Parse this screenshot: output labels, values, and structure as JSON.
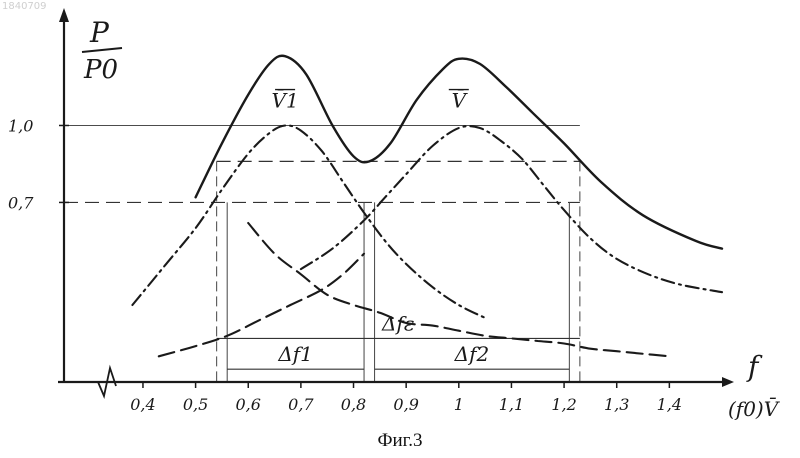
{
  "watermark": "1840709",
  "caption": "Фиг.3",
  "chart_data": {
    "type": "line",
    "xlabel_f": "f",
    "xlabel_unit": "(f0)V̄",
    "ylabel_num": "P",
    "ylabel_den": "P0",
    "xlim": [
      0.25,
      1.5
    ],
    "ylim": [
      0,
      1.38
    ],
    "x_ticks": [
      0.4,
      0.5,
      0.6,
      0.7,
      0.8,
      0.9,
      1.0,
      1.1,
      1.2,
      1.3,
      1.4
    ],
    "x_tick_labels": [
      "0,4",
      "0,5",
      "0,6",
      "0,7",
      "0,8",
      "0,9",
      "1",
      "1,1",
      "1,2",
      "1,3",
      "1,4"
    ],
    "y_ticks": [
      1.0,
      0.7
    ],
    "y_tick_labels": [
      "1,0",
      "0,7"
    ],
    "reference_lines": [
      {
        "y": 1.0,
        "style": "solid"
      },
      {
        "y": 0.86,
        "style": "dashed"
      },
      {
        "y": 0.7,
        "style": "dashed"
      }
    ],
    "series": [
      {
        "name": "V̄1",
        "style": "dash-dot",
        "label_at": {
          "x": 0.67,
          "y": 1.07
        },
        "x": [
          0.38,
          0.44,
          0.5,
          0.55,
          0.6,
          0.64,
          0.67,
          0.7,
          0.74,
          0.78,
          0.82,
          0.86,
          0.9,
          0.95,
          1.0,
          1.05
        ],
        "y": [
          0.3,
          0.45,
          0.6,
          0.75,
          0.89,
          0.97,
          1.0,
          0.98,
          0.9,
          0.78,
          0.66,
          0.55,
          0.46,
          0.37,
          0.3,
          0.25
        ]
      },
      {
        "name": "V̄",
        "style": "dash-dot",
        "label_at": {
          "x": 1.0,
          "y": 1.07
        },
        "x": [
          0.7,
          0.76,
          0.82,
          0.86,
          0.9,
          0.95,
          1.0,
          1.04,
          1.08,
          1.12,
          1.16,
          1.2,
          1.25,
          1.3,
          1.36,
          1.42,
          1.5
        ],
        "y": [
          0.44,
          0.52,
          0.63,
          0.72,
          0.81,
          0.92,
          0.99,
          0.99,
          0.94,
          0.87,
          0.77,
          0.67,
          0.56,
          0.48,
          0.42,
          0.38,
          0.35
        ]
      },
      {
        "name": "",
        "style": "dashed",
        "x": [
          0.6,
          0.65,
          0.7,
          0.75,
          0.8,
          0.85,
          0.9,
          0.95,
          1.0,
          1.05,
          1.1,
          1.15,
          1.2,
          1.25,
          1.3,
          1.35,
          1.4
        ],
        "y": [
          0.62,
          0.5,
          0.42,
          0.34,
          0.3,
          0.27,
          0.23,
          0.22,
          0.2,
          0.18,
          0.17,
          0.16,
          0.15,
          0.13,
          0.12,
          0.11,
          0.1
        ]
      },
      {
        "name": "",
        "style": "dashed",
        "x": [
          0.43,
          0.5,
          0.56,
          0.62,
          0.68,
          0.74,
          0.78,
          0.82
        ],
        "y": [
          0.1,
          0.14,
          0.18,
          0.24,
          0.3,
          0.36,
          0.42,
          0.5
        ]
      },
      {
        "name": "",
        "style": "solid",
        "x": [
          0.5,
          0.55,
          0.6,
          0.64,
          0.67,
          0.71,
          0.76,
          0.8,
          0.83,
          0.87,
          0.92,
          0.97,
          1.0,
          1.04,
          1.09,
          1.14,
          1.2,
          1.27,
          1.35,
          1.45,
          1.5
        ],
        "y": [
          0.72,
          0.93,
          1.12,
          1.24,
          1.27,
          1.2,
          1.0,
          0.88,
          0.86,
          0.93,
          1.1,
          1.22,
          1.26,
          1.24,
          1.15,
          1.05,
          0.93,
          0.78,
          0.65,
          0.55,
          0.52
        ]
      }
    ],
    "bandwidth_markers": [
      {
        "label": "Δf1",
        "from": 0.56,
        "to": 0.82,
        "level": 0.05,
        "vlines_top": 0.7
      },
      {
        "label": "Δf2",
        "from": 0.84,
        "to": 1.21,
        "level": 0.05,
        "vlines_top": 0.7
      },
      {
        "label": "Δfε",
        "from": 0.54,
        "to": 1.23,
        "level": 0.17,
        "vlines_top": 0.86
      }
    ]
  }
}
